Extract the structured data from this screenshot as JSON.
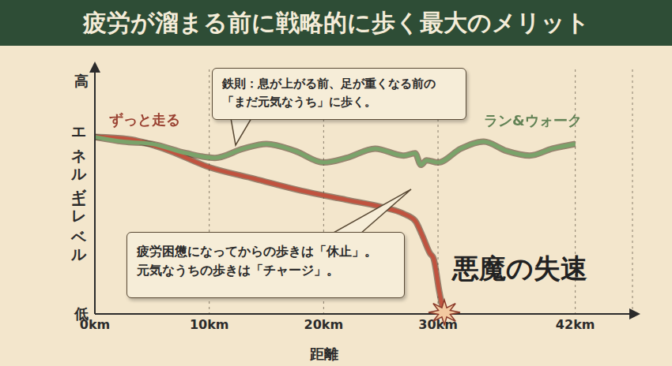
{
  "chart_data": {
    "type": "line",
    "title": "疲労が溜まる前に戦略的に歩く最大のメリット",
    "x_label": "距離",
    "y_label": "エネルギーレベル",
    "xlim": [
      0,
      47
    ],
    "xticks": [
      {
        "value": 0,
        "label": "0km"
      },
      {
        "value": 10,
        "label": "10km"
      },
      {
        "value": 20,
        "label": "20km"
      },
      {
        "value": 30,
        "label": "30km"
      },
      {
        "value": 42,
        "label": "42km"
      }
    ],
    "ylim": [
      0,
      105
    ],
    "yticks": [
      {
        "value": 0,
        "label": "低"
      },
      {
        "value": 100,
        "label": "高"
      }
    ],
    "grid": "x",
    "series": [
      {
        "name": "ずっと走る",
        "color": "#c0533f",
        "x": [
          0,
          3,
          6,
          10,
          14,
          18,
          22,
          25,
          27,
          28,
          28.6,
          29.3,
          29.6,
          30.1,
          30.5
        ],
        "values": [
          76,
          75,
          71,
          63,
          58,
          53,
          49,
          46,
          43,
          40,
          34,
          26,
          24,
          10,
          0
        ]
      },
      {
        "name": "ラン&ウォーク",
        "color": "#7aa36a",
        "x": [
          0,
          2.5,
          5,
          8,
          10.5,
          13,
          15,
          17.5,
          20,
          22,
          24.5,
          27,
          28,
          28.5,
          29,
          30,
          32,
          34,
          36,
          38,
          40,
          42
        ],
        "values": [
          76,
          74,
          73,
          69,
          67,
          71,
          73,
          70,
          65,
          67,
          71,
          68,
          69,
          64,
          66,
          65,
          71,
          74,
          70,
          68,
          71,
          73
        ]
      }
    ],
    "annotations": [
      {
        "text": [
          "鉄則：息が上がる前、足が重くなる前の",
          "「まだ元気なうち」に歩く。"
        ]
      },
      {
        "text": [
          "疲労困憊になってからの歩きは「休止」。",
          "元気なうちの歩きは「チャージ」。"
        ]
      },
      {
        "text": [
          "悪魔の失速"
        ]
      }
    ]
  }
}
